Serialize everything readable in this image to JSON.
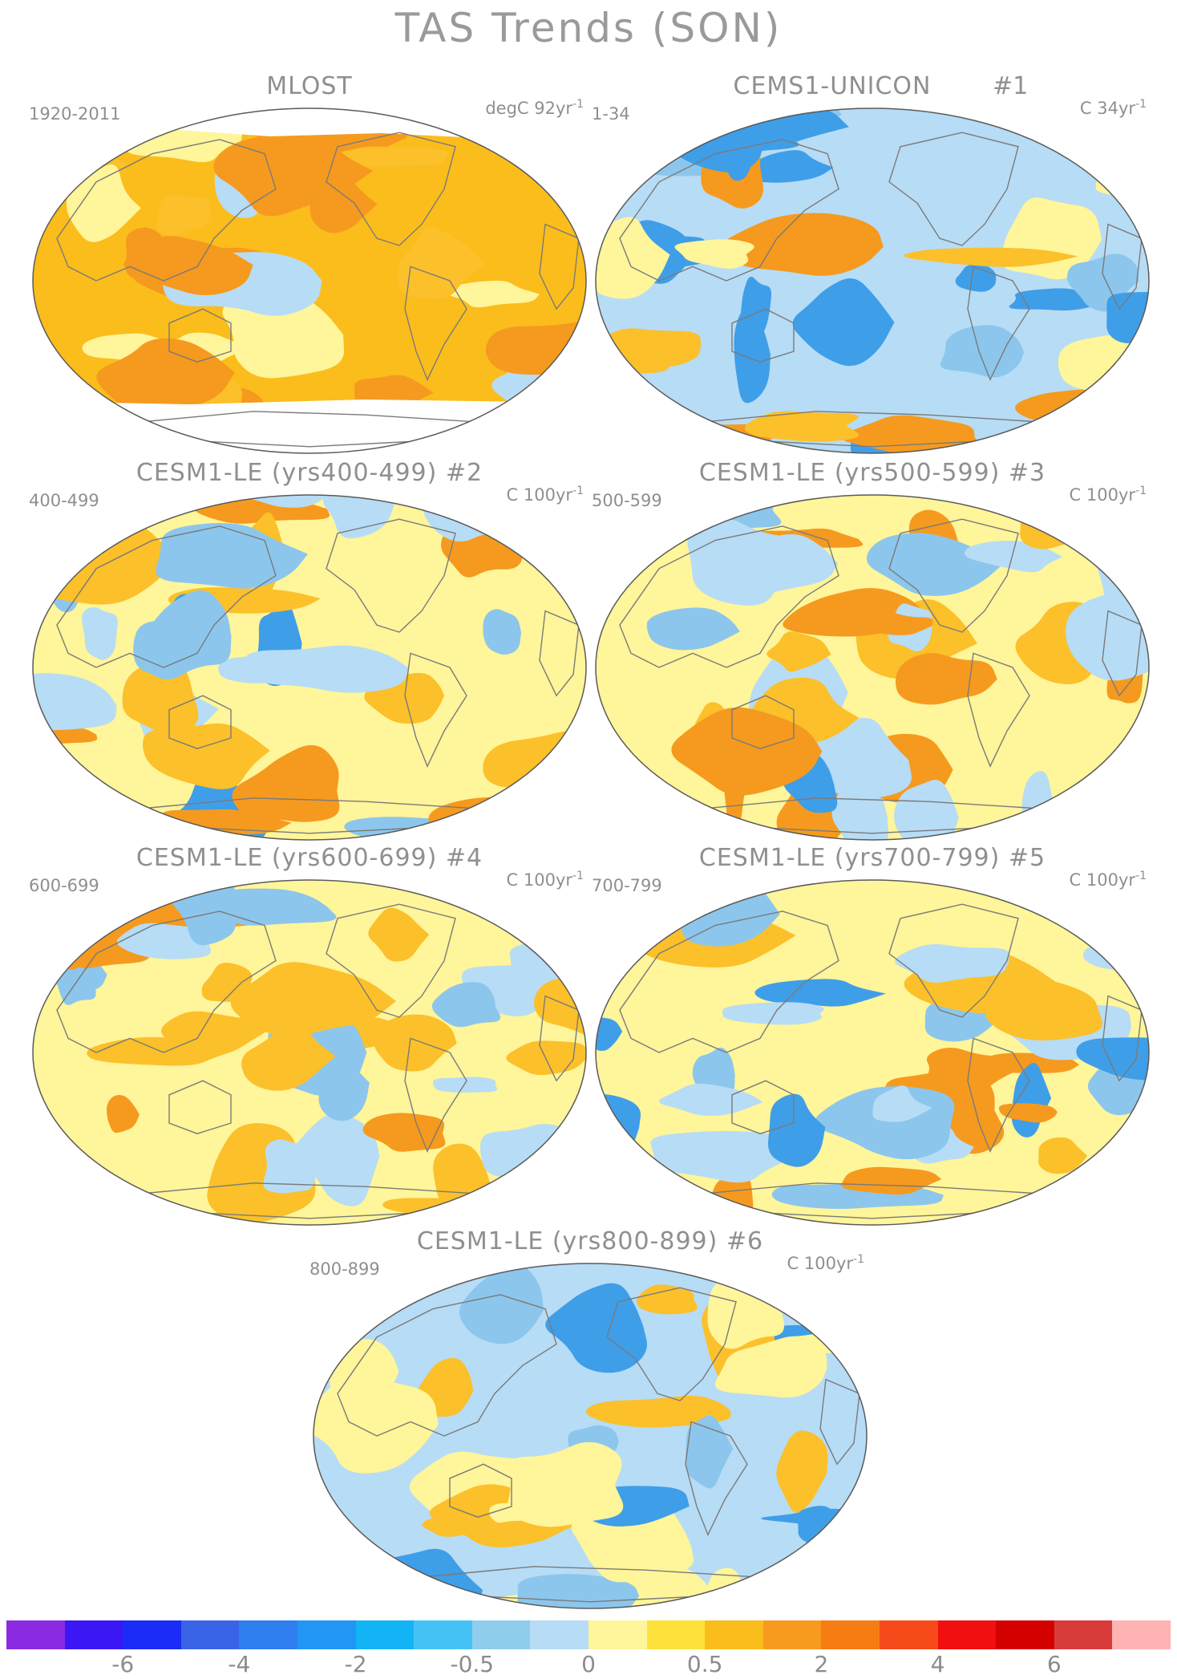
{
  "title": "TAS Trends (SON)",
  "colors": {
    "blob_warm_strong": "#f59a1e",
    "blob_warm": "#fbc02a",
    "blob_warm_light": "#fff59a",
    "blob_cool_light": "#b7dcf5",
    "blob_cool": "#8cc6ec",
    "blob_cool_strong": "#3f9ee8",
    "land_outline": "#7a7a7a",
    "map_border": "#5a5a5a"
  },
  "panels": [
    {
      "id": "mlost",
      "title": "MLOST",
      "number": "",
      "years": "1920-2011",
      "units": "degC 92yr",
      "exponent": "-1",
      "base": "#fbbd1c",
      "pattern": "warm"
    },
    {
      "id": "unicon",
      "title": "CEMS1-UNICON",
      "number": "#1",
      "years": "1-34",
      "units": "C 34yr",
      "exponent": "-1",
      "base": "#b7dcf5",
      "pattern": "cool"
    },
    {
      "id": "le2",
      "title": "CESM1-LE (yrs400-499) #2",
      "number": "",
      "years": "400-499",
      "units": "C 100yr",
      "exponent": "-1",
      "base": "#fff59a",
      "pattern": "mixed"
    },
    {
      "id": "le3",
      "title": "CESM1-LE (yrs500-599) #3",
      "number": "",
      "years": "500-599",
      "units": "C 100yr",
      "exponent": "-1",
      "base": "#fff59a",
      "pattern": "mixed"
    },
    {
      "id": "le4",
      "title": "CESM1-LE (yrs600-699) #4",
      "number": "",
      "years": "600-699",
      "units": "C 100yr",
      "exponent": "-1",
      "base": "#fff59a",
      "pattern": "warmish"
    },
    {
      "id": "le5",
      "title": "CESM1-LE (yrs700-799) #5",
      "number": "",
      "years": "700-799",
      "units": "C 100yr",
      "exponent": "-1",
      "base": "#fff59a",
      "pattern": "mixed"
    },
    {
      "id": "le6",
      "title": "CESM1-LE (yrs800-899) #6",
      "number": "",
      "years": "800-899",
      "units": "C 100yr",
      "exponent": "-1",
      "base": "#b7dcf5",
      "pattern": "coolish"
    }
  ],
  "colorbar": {
    "colors": [
      "#8a2be2",
      "#3b17f5",
      "#1a2cf5",
      "#3a64e8",
      "#2f7ef0",
      "#2196f5",
      "#12b4f5",
      "#45c2f5",
      "#8ecdec",
      "#b7dcf5",
      "#fff59a",
      "#fde23c",
      "#fbbd1c",
      "#f89a1e",
      "#f77d12",
      "#f64a1a",
      "#f20f0f",
      "#d40000",
      "#d93b3b",
      "#ffb3b3"
    ],
    "labels": [
      "-6",
      "-4",
      "-2",
      "-0.5",
      "0",
      "0.5",
      "2",
      "4",
      "6"
    ],
    "label_after_cell": [
      1,
      3,
      5,
      7,
      9,
      11,
      13,
      15,
      17
    ]
  }
}
